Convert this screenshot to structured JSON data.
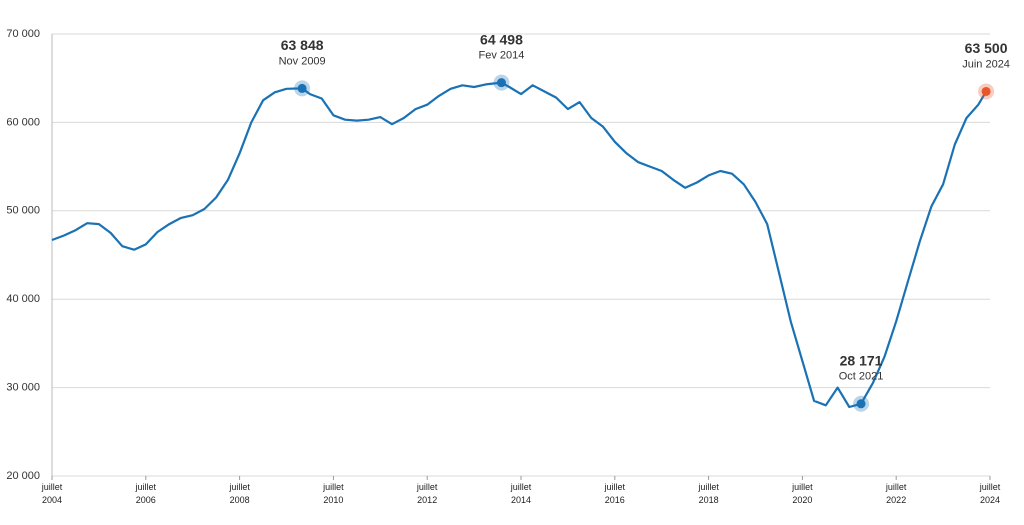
{
  "chart_data": {
    "type": "line",
    "x": [
      "2004-07",
      "2004-10",
      "2005-01",
      "2005-04",
      "2005-07",
      "2005-10",
      "2006-01",
      "2006-04",
      "2006-07",
      "2006-10",
      "2007-01",
      "2007-04",
      "2007-07",
      "2007-10",
      "2008-01",
      "2008-04",
      "2008-07",
      "2008-10",
      "2009-01",
      "2009-04",
      "2009-07",
      "2009-11",
      "2010-01",
      "2010-04",
      "2010-07",
      "2010-10",
      "2011-01",
      "2011-04",
      "2011-07",
      "2011-10",
      "2012-01",
      "2012-04",
      "2012-07",
      "2012-10",
      "2013-01",
      "2013-04",
      "2013-07",
      "2013-10",
      "2014-02",
      "2014-04",
      "2014-07",
      "2014-10",
      "2015-01",
      "2015-04",
      "2015-07",
      "2015-10",
      "2016-01",
      "2016-04",
      "2016-07",
      "2016-10",
      "2017-01",
      "2017-04",
      "2017-07",
      "2017-10",
      "2018-01",
      "2018-04",
      "2018-07",
      "2018-10",
      "2019-01",
      "2019-04",
      "2019-07",
      "2019-10",
      "2020-01",
      "2020-04",
      "2020-07",
      "2020-10",
      "2021-01",
      "2021-04",
      "2021-07",
      "2021-10",
      "2022-01",
      "2022-04",
      "2022-07",
      "2022-10",
      "2023-01",
      "2023-04",
      "2023-07",
      "2023-10",
      "2024-01",
      "2024-04",
      "2024-06"
    ],
    "series": [
      {
        "color": "#1a72b5",
        "values": [
          46700,
          47200,
          47800,
          48600,
          48500,
          47500,
          46000,
          45600,
          46200,
          47600,
          48500,
          49200,
          49500,
          50200,
          51500,
          53500,
          56500,
          60000,
          62500,
          63400,
          63800,
          63848,
          63200,
          62700,
          60800,
          60300,
          60200,
          60300,
          60600,
          59800,
          60500,
          61500,
          62000,
          63000,
          63800,
          64200,
          64000,
          64300,
          64498,
          64000,
          63200,
          64200,
          63500,
          62800,
          61500,
          62300,
          60500,
          59500,
          57800,
          56500,
          55500,
          55000,
          54500,
          53500,
          52600,
          53200,
          54000,
          54500,
          54200,
          53000,
          51000,
          48500,
          43000,
          37500,
          33000,
          28500,
          28000,
          30000,
          27800,
          28171,
          30500,
          33500,
          37500,
          42000,
          46500,
          50500,
          53000,
          57500,
          60500,
          62000,
          63500
        ]
      }
    ],
    "xlim": [
      "2004-07",
      "2024-07"
    ],
    "xticks": [
      {
        "value": "2004-07",
        "label": "juillet 2004"
      },
      {
        "value": "2006-07",
        "label": "juillet 2006"
      },
      {
        "value": "2008-07",
        "label": "juillet 2008"
      },
      {
        "value": "2010-07",
        "label": "juillet 2010"
      },
      {
        "value": "2012-07",
        "label": "juillet 2012"
      },
      {
        "value": "2014-07",
        "label": "juillet 2014"
      },
      {
        "value": "2016-07",
        "label": "juillet 2016"
      },
      {
        "value": "2018-07",
        "label": "juillet 2018"
      },
      {
        "value": "2020-07",
        "label": "juillet 2020"
      },
      {
        "value": "2022-07",
        "label": "juillet 2022"
      },
      {
        "value": "2024-07",
        "label": "juillet 2024"
      }
    ],
    "ylim": [
      20000,
      70000
    ],
    "yticks": [
      {
        "value": 20000,
        "label": "20 000"
      },
      {
        "value": 30000,
        "label": "30 000"
      },
      {
        "value": 40000,
        "label": "40 000"
      },
      {
        "value": 50000,
        "label": "50 000"
      },
      {
        "value": 60000,
        "label": "60 000"
      },
      {
        "value": 70000,
        "label": "70 000"
      }
    ],
    "grid": true,
    "annotations": [
      {
        "x": "2009-11",
        "value": 63848,
        "label": "63 848",
        "date": "Nov 2009",
        "color": "#1a72b5"
      },
      {
        "x": "2014-02",
        "value": 64498,
        "label": "64 498",
        "date": "Fev 2014",
        "color": "#1a72b5"
      },
      {
        "x": "2021-10",
        "value": 28171,
        "label": "28 171",
        "date": "Oct 2021",
        "color": "#1a72b5"
      },
      {
        "x": "2024-06",
        "value": 63500,
        "label": "63 500",
        "date": "Juin 2024",
        "color": "#e8572a"
      }
    ]
  }
}
